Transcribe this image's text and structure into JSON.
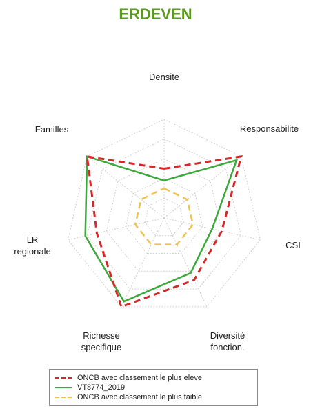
{
  "title": "ERDEVEN",
  "chart_data": {
    "type": "radar",
    "axes": [
      "Densite",
      "Responsabilite",
      "CSI",
      "Diversité\nfonction.",
      "Richesse\nspecifique",
      "LR\nregionale",
      "Familles"
    ],
    "rmax": 5,
    "rings": 5,
    "series": [
      {
        "name": "ONCB avec classement le plus eleve",
        "color": "#d62828",
        "dash": "9,6",
        "width": 3,
        "values": [
          2.5,
          5,
          3,
          3.5,
          5,
          3.5,
          5
        ]
      },
      {
        "name": "VT8774_2019",
        "color": "#3ca83c",
        "dash": "",
        "width": 2.5,
        "values": [
          1.9,
          4.7,
          2.5,
          3.1,
          4.7,
          4.1,
          5
        ]
      },
      {
        "name": "ONCB avec classement le plus faible",
        "color": "#f2c14e",
        "dash": "9,6",
        "width": 2.5,
        "values": [
          1.5,
          1.5,
          1.5,
          1.5,
          1.5,
          1.5,
          1.5
        ]
      }
    ],
    "grid": true,
    "legend_position": "bottom"
  }
}
